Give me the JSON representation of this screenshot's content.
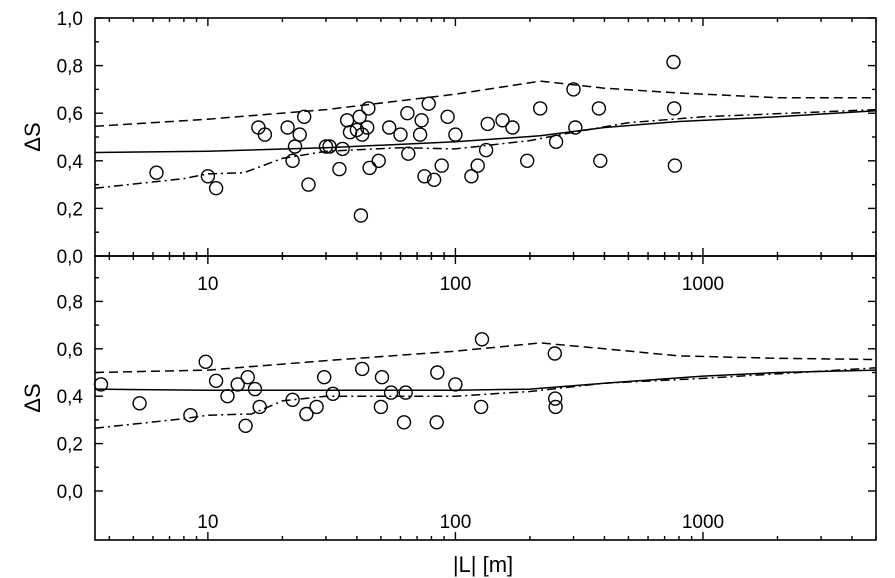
{
  "chart_data": [
    {
      "type": "scatter",
      "panel": "top",
      "xscale": "log",
      "xlim": [
        3.5,
        5000
      ],
      "ylim": [
        0.0,
        1.0
      ],
      "xlabel": "",
      "ylabel": "ΔS",
      "yticks": [
        "0,0",
        "0,2",
        "0,4",
        "0,6",
        "0,8",
        "1,0"
      ],
      "xticks": [
        "10",
        "100",
        "1000"
      ],
      "points": [
        [
          6.2,
          0.35
        ],
        [
          10,
          0.335
        ],
        [
          10.8,
          0.285
        ],
        [
          16,
          0.54
        ],
        [
          17,
          0.51
        ],
        [
          21,
          0.54
        ],
        [
          22,
          0.4
        ],
        [
          22.5,
          0.46
        ],
        [
          23.5,
          0.51
        ],
        [
          24.5,
          0.585
        ],
        [
          25.5,
          0.3
        ],
        [
          30,
          0.46
        ],
        [
          31,
          0.46
        ],
        [
          34,
          0.365
        ],
        [
          35,
          0.45
        ],
        [
          36.5,
          0.57
        ],
        [
          37.5,
          0.52
        ],
        [
          40,
          0.53
        ],
        [
          41,
          0.585
        ],
        [
          41.5,
          0.17
        ],
        [
          42,
          0.51
        ],
        [
          44,
          0.54
        ],
        [
          44.5,
          0.62
        ],
        [
          45,
          0.37
        ],
        [
          49,
          0.4
        ],
        [
          54,
          0.54
        ],
        [
          60,
          0.51
        ],
        [
          64,
          0.6
        ],
        [
          64.5,
          0.43
        ],
        [
          72,
          0.51
        ],
        [
          73,
          0.57
        ],
        [
          75,
          0.335
        ],
        [
          78,
          0.64
        ],
        [
          82,
          0.32
        ],
        [
          88,
          0.38
        ],
        [
          93,
          0.585
        ],
        [
          100,
          0.51
        ],
        [
          116,
          0.335
        ],
        [
          123,
          0.38
        ],
        [
          133,
          0.445
        ],
        [
          135,
          0.555
        ],
        [
          155,
          0.57
        ],
        [
          170,
          0.54
        ],
        [
          195,
          0.4
        ],
        [
          220,
          0.62
        ],
        [
          255,
          0.48
        ],
        [
          300,
          0.7
        ],
        [
          305,
          0.54
        ],
        [
          380,
          0.62
        ],
        [
          385,
          0.4
        ],
        [
          760,
          0.815
        ],
        [
          765,
          0.62
        ],
        [
          770,
          0.38
        ]
      ],
      "lines": {
        "solid": [
          [
            3.5,
            0.435
          ],
          [
            10,
            0.44
          ],
          [
            30,
            0.455
          ],
          [
            100,
            0.48
          ],
          [
            220,
            0.505
          ],
          [
            400,
            0.54
          ],
          [
            800,
            0.565
          ],
          [
            2000,
            0.585
          ],
          [
            5000,
            0.61
          ]
        ],
        "dashed": [
          [
            3.5,
            0.545
          ],
          [
            10,
            0.575
          ],
          [
            30,
            0.615
          ],
          [
            100,
            0.68
          ],
          [
            220,
            0.735
          ],
          [
            400,
            0.705
          ],
          [
            800,
            0.685
          ],
          [
            2000,
            0.665
          ],
          [
            5000,
            0.665
          ]
        ],
        "dashdot": [
          [
            3.5,
            0.285
          ],
          [
            8,
            0.325
          ],
          [
            10,
            0.345
          ],
          [
            14,
            0.35
          ],
          [
            20,
            0.41
          ],
          [
            30,
            0.44
          ],
          [
            60,
            0.455
          ],
          [
            100,
            0.45
          ],
          [
            200,
            0.485
          ],
          [
            300,
            0.52
          ],
          [
            500,
            0.56
          ],
          [
            1000,
            0.585
          ],
          [
            5000,
            0.615
          ]
        ]
      }
    },
    {
      "type": "scatter",
      "panel": "bottom",
      "xscale": "log",
      "xlim": [
        3.5,
        5000
      ],
      "ylim": [
        0.0,
        1.0
      ],
      "xlabel": "|L| [m]",
      "ylabel": "ΔS",
      "yticks": [
        "0,0",
        "0,2",
        "0,4",
        "0,6",
        "0,8"
      ],
      "xticks": [
        "10",
        "100",
        "1000"
      ],
      "points": [
        [
          3.7,
          0.45
        ],
        [
          5.3,
          0.37
        ],
        [
          8.5,
          0.32
        ],
        [
          9.8,
          0.545
        ],
        [
          10.8,
          0.465
        ],
        [
          12,
          0.4
        ],
        [
          13.2,
          0.45
        ],
        [
          14.2,
          0.275
        ],
        [
          14.5,
          0.48
        ],
        [
          15.5,
          0.43
        ],
        [
          16.2,
          0.355
        ],
        [
          22,
          0.385
        ],
        [
          25,
          0.325
        ],
        [
          27.5,
          0.355
        ],
        [
          29.5,
          0.48
        ],
        [
          32,
          0.41
        ],
        [
          42,
          0.515
        ],
        [
          50,
          0.355
        ],
        [
          50.5,
          0.48
        ],
        [
          55,
          0.415
        ],
        [
          62,
          0.29
        ],
        [
          63,
          0.415
        ],
        [
          84,
          0.29
        ],
        [
          84.5,
          0.5
        ],
        [
          100,
          0.45
        ],
        [
          127,
          0.355
        ],
        [
          128,
          0.64
        ],
        [
          252,
          0.58
        ],
        [
          253,
          0.39
        ],
        [
          254,
          0.355
        ]
      ],
      "lines": {
        "solid": [
          [
            3.5,
            0.43
          ],
          [
            10,
            0.425
          ],
          [
            30,
            0.425
          ],
          [
            100,
            0.425
          ],
          [
            200,
            0.43
          ],
          [
            400,
            0.455
          ],
          [
            1000,
            0.485
          ],
          [
            2000,
            0.5
          ],
          [
            5000,
            0.51
          ]
        ],
        "dashed": [
          [
            3.5,
            0.5
          ],
          [
            10,
            0.51
          ],
          [
            30,
            0.55
          ],
          [
            100,
            0.59
          ],
          [
            220,
            0.625
          ],
          [
            400,
            0.6
          ],
          [
            800,
            0.57
          ],
          [
            2000,
            0.56
          ],
          [
            5000,
            0.555
          ]
        ],
        "dashdot": [
          [
            3.5,
            0.265
          ],
          [
            8,
            0.305
          ],
          [
            10,
            0.32
          ],
          [
            15,
            0.325
          ],
          [
            20,
            0.38
          ],
          [
            30,
            0.4
          ],
          [
            100,
            0.4
          ],
          [
            200,
            0.42
          ],
          [
            400,
            0.455
          ],
          [
            1000,
            0.475
          ],
          [
            5000,
            0.52
          ]
        ]
      }
    }
  ]
}
